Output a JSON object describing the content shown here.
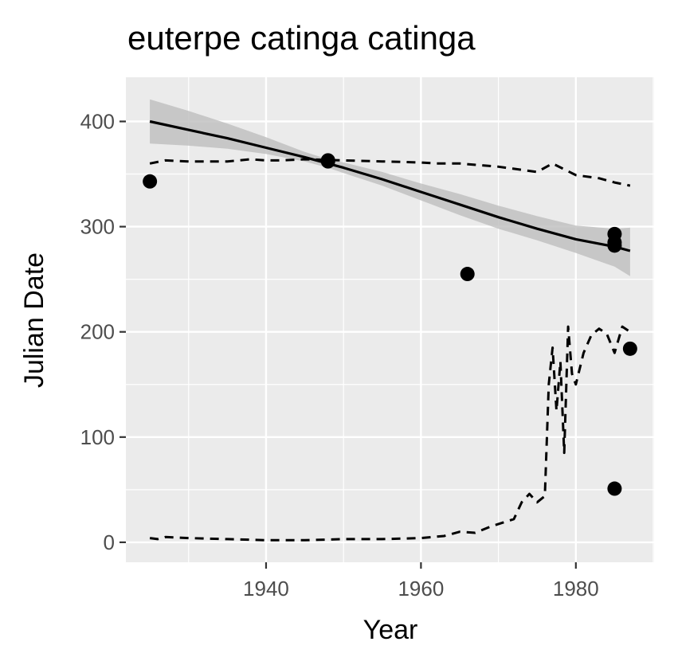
{
  "chart_data": {
    "type": "scatter",
    "title": "euterpe catinga catinga",
    "xlabel": "Year",
    "ylabel": "Julian Date",
    "xlim": [
      1921.9,
      1990.1
    ],
    "ylim": [
      -19,
      442
    ],
    "x_ticks": [
      1940,
      1960,
      1980
    ],
    "y_ticks": [
      0,
      100,
      200,
      300,
      400
    ],
    "x_tick_labels": [
      "1940",
      "1960",
      "1980"
    ],
    "y_tick_labels": [
      "0",
      "100",
      "200",
      "300",
      "400"
    ],
    "grid": true,
    "legend": "none",
    "colors": {
      "panel": "#ebebeb",
      "grid": "#ffffff",
      "points": "#000000",
      "band": "#bebebe",
      "line": "#000000"
    },
    "points": [
      {
        "x": 1925,
        "y": 343
      },
      {
        "x": 1948,
        "y": 363
      },
      {
        "x": 1948,
        "y": 362
      },
      {
        "x": 1966,
        "y": 255
      },
      {
        "x": 1985,
        "y": 293
      },
      {
        "x": 1985,
        "y": 285
      },
      {
        "x": 1985,
        "y": 282
      },
      {
        "x": 1985,
        "y": 51
      },
      {
        "x": 1987,
        "y": 184
      }
    ],
    "smooth_fit": {
      "x": [
        1925,
        1930,
        1935,
        1940,
        1945,
        1948,
        1950,
        1955,
        1960,
        1965,
        1970,
        1975,
        1980,
        1985,
        1987
      ],
      "y": [
        400,
        392,
        384,
        375,
        366,
        360,
        356,
        345,
        333,
        321,
        309,
        298,
        288,
        281,
        277
      ],
      "lower": [
        379,
        377,
        374,
        369,
        362,
        356,
        351,
        339,
        325,
        311,
        298,
        287,
        275,
        262,
        253
      ],
      "upper": [
        421,
        410,
        398,
        385,
        371,
        364,
        361,
        352,
        341,
        331,
        320,
        310,
        301,
        298,
        299
      ]
    },
    "upper_dashed": {
      "x": [
        1925,
        1927,
        1930,
        1935,
        1938,
        1940,
        1942,
        1945,
        1950,
        1955,
        1960,
        1962,
        1965,
        1970,
        1975,
        1977,
        1980,
        1983,
        1985,
        1987
      ],
      "y": [
        360,
        363,
        362,
        362,
        364,
        363,
        363,
        364,
        363,
        362,
        361,
        360,
        360,
        357,
        352,
        360,
        349,
        346,
        342,
        339
      ]
    },
    "lower_dashed": {
      "x": [
        1925,
        1926,
        1927,
        1930,
        1935,
        1940,
        1945,
        1950,
        1955,
        1960,
        1963,
        1965,
        1967,
        1969,
        1972,
        1973,
        1974,
        1975,
        1976,
        1976.5,
        1977,
        1977.5,
        1978,
        1978.5,
        1979,
        1979.5,
        1980,
        1981,
        1982,
        1983,
        1984,
        1985,
        1986,
        1987
      ],
      "y": [
        4,
        3,
        5,
        4,
        3,
        2,
        2,
        3,
        3,
        4,
        6,
        10,
        9,
        15,
        22,
        38,
        46,
        38,
        44,
        150,
        185,
        125,
        172,
        85,
        205,
        160,
        150,
        180,
        197,
        203,
        198,
        180,
        205,
        200
      ]
    }
  }
}
